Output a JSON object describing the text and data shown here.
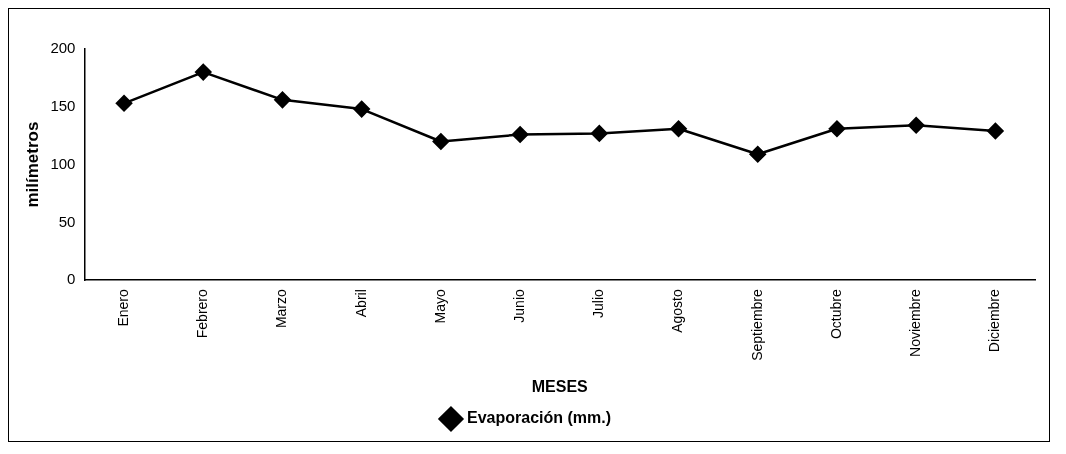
{
  "chart_data": {
    "type": "line",
    "xlabel": "MESES",
    "ylabel": "milímetros",
    "categories": [
      "Enero",
      "Febrero",
      "Marzo",
      "Abril",
      "Mayo",
      "Junio",
      "Julio",
      "Agosto",
      "Septiembre",
      "Octubre",
      "Noviembre",
      "Diciembre"
    ],
    "series": [
      {
        "name": "Evaporación (mm.)",
        "color": "#000000",
        "values": [
          153,
          180,
          156,
          148,
          120,
          126,
          127,
          131,
          109,
          131,
          134,
          129
        ]
      }
    ],
    "ylim": [
      0,
      200
    ],
    "yticks": [
      0,
      50,
      100,
      150,
      200
    ],
    "grid": false,
    "legend": "bottom",
    "marker": "diamond",
    "line_style": "solid"
  }
}
